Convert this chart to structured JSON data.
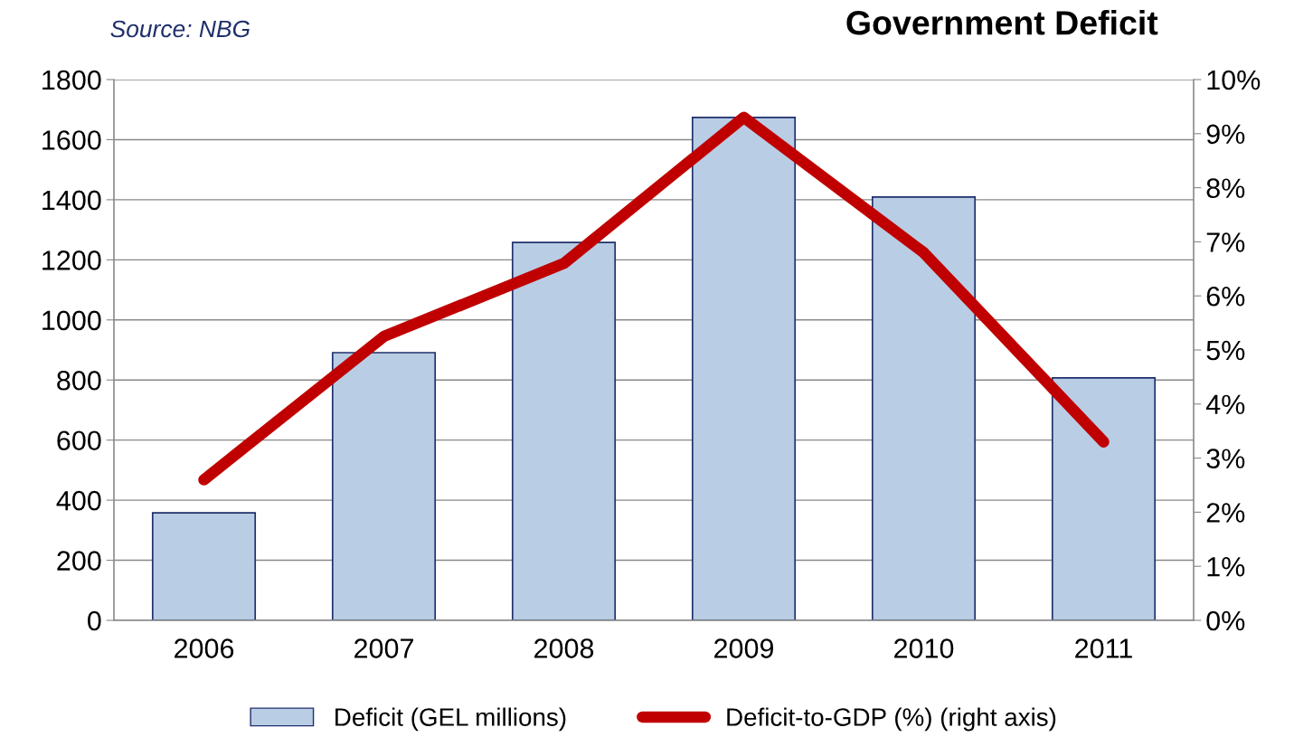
{
  "chart_data": {
    "type": "bar",
    "title": "Government Deficit",
    "annotations": [
      "Source: NBG"
    ],
    "categories": [
      "2006",
      "2007",
      "2008",
      "2009",
      "2010",
      "2011"
    ],
    "series": [
      {
        "name": "Deficit (GEL millions)",
        "color": "#b9cde5",
        "values": [
          358,
          891,
          1258,
          1674,
          1409,
          807
        ]
      },
      {
        "name": "Deficit-to-GDP (%) (right axis)",
        "type": "line",
        "axis": "y2",
        "color": "#c00000",
        "values": [
          2.6,
          5.25,
          6.6,
          9.3,
          6.8,
          3.3
        ]
      }
    ],
    "ylim": [
      0,
      1800
    ],
    "yticks": [
      0,
      200,
      400,
      600,
      800,
      1000,
      1200,
      1400,
      1600,
      1800
    ],
    "y2lim": [
      0,
      10
    ],
    "y2ticks": [
      {
        "value": 0,
        "label": "0%"
      },
      {
        "value": 1,
        "label": "1%"
      },
      {
        "value": 2,
        "label": "2%"
      },
      {
        "value": 3,
        "label": "3%"
      },
      {
        "value": 4,
        "label": "4%"
      },
      {
        "value": 5,
        "label": "5%"
      },
      {
        "value": 6,
        "label": "6%"
      },
      {
        "value": 7,
        "label": "7%"
      },
      {
        "value": 8,
        "label": "8%"
      },
      {
        "value": 9,
        "label": "9%"
      },
      {
        "value": 10,
        "label": "10%"
      }
    ],
    "grid": "y",
    "legend": "bottom"
  }
}
